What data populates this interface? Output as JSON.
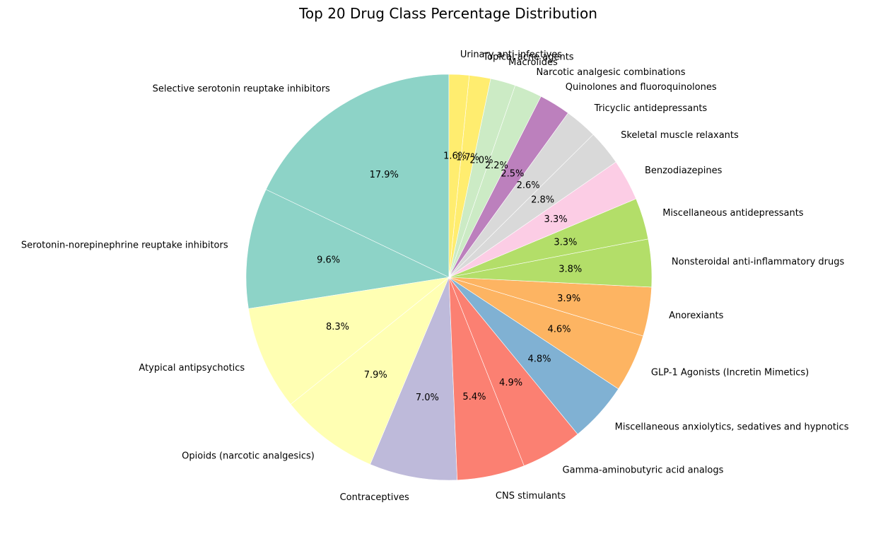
{
  "chart_data": {
    "type": "pie",
    "title": "Top 20 Drug Class Percentage Distribution",
    "start_angle_deg": 90,
    "direction": "counterclockwise",
    "slices": [
      {
        "label": "Selective serotonin reuptake inhibitors",
        "value": 17.9,
        "pct_label": "17.9%",
        "color": "#8dd3c7"
      },
      {
        "label": "Serotonin-norepinephrine reuptake inhibitors",
        "value": 9.6,
        "pct_label": "9.6%",
        "color": "#8dd3c7"
      },
      {
        "label": "Atypical antipsychotics",
        "value": 8.3,
        "pct_label": "8.3%",
        "color": "#ffffb3"
      },
      {
        "label": "Opioids (narcotic analgesics)",
        "value": 7.9,
        "pct_label": "7.9%",
        "color": "#ffffb3"
      },
      {
        "label": "Contraceptives",
        "value": 7.0,
        "pct_label": "7.0%",
        "color": "#bebada"
      },
      {
        "label": "CNS stimulants",
        "value": 5.4,
        "pct_label": "5.4%",
        "color": "#fb8072"
      },
      {
        "label": "Gamma-aminobutyric acid analogs",
        "value": 4.9,
        "pct_label": "4.9%",
        "color": "#fb8072"
      },
      {
        "label": "Miscellaneous anxiolytics, sedatives and hypnotics",
        "value": 4.8,
        "pct_label": "4.8%",
        "color": "#80b1d3"
      },
      {
        "label": "GLP-1 Agonists (Incretin Mimetics)",
        "value": 4.6,
        "pct_label": "4.6%",
        "color": "#fdb462"
      },
      {
        "label": "Anorexiants",
        "value": 3.9,
        "pct_label": "3.9%",
        "color": "#fdb462"
      },
      {
        "label": "Nonsteroidal anti-inflammatory drugs",
        "value": 3.8,
        "pct_label": "3.8%",
        "color": "#b3de69"
      },
      {
        "label": "Miscellaneous antidepressants",
        "value": 3.3,
        "pct_label": "3.3%",
        "color": "#b3de69"
      },
      {
        "label": "Benzodiazepines",
        "value": 3.3,
        "pct_label": "3.3%",
        "color": "#fccde5"
      },
      {
        "label": "Skeletal muscle relaxants",
        "value": 2.8,
        "pct_label": "2.8%",
        "color": "#d9d9d9"
      },
      {
        "label": "Tricyclic antidepressants",
        "value": 2.6,
        "pct_label": "2.6%",
        "color": "#d9d9d9"
      },
      {
        "label": "Quinolones and fluoroquinolones",
        "value": 2.5,
        "pct_label": "2.5%",
        "color": "#bc80bd"
      },
      {
        "label": "Narcotic analgesic combinations",
        "value": 2.2,
        "pct_label": "2.2%",
        "color": "#ccebc5"
      },
      {
        "label": "Macrolides",
        "value": 2.0,
        "pct_label": "2.0%",
        "color": "#ccebc5"
      },
      {
        "label": "Topical acne agents",
        "value": 1.7,
        "pct_label": "1.7%",
        "color": "#ffed6f"
      },
      {
        "label": "Urinary anti-infectives",
        "value": 1.6,
        "pct_label": "1.6%",
        "color": "#ffed6f"
      }
    ]
  }
}
